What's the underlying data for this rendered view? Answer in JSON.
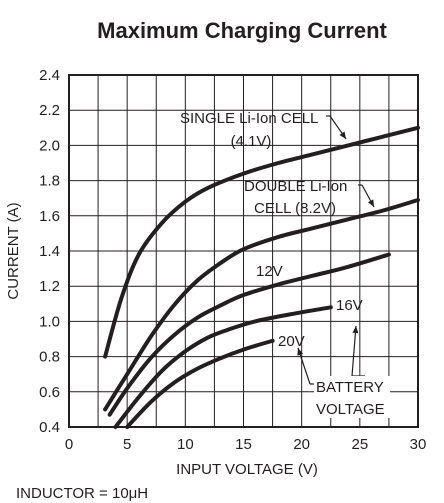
{
  "chart_data": {
    "type": "line",
    "title": "Maximum Charging Current",
    "xlabel": "INPUT VOLTAGE (V)",
    "ylabel": "CURRENT (A)",
    "xlim": [
      0,
      30
    ],
    "ylim": [
      0.4,
      2.4
    ],
    "xticks": [
      0,
      5,
      10,
      15,
      20,
      25,
      30
    ],
    "yticks": [
      "0.4",
      "0.6",
      "0.8",
      "1.0",
      "1.2",
      "1.4",
      "1.6",
      "1.8",
      "2.0",
      "2.2",
      "2.4"
    ],
    "grid": true,
    "footnote": "INDUCTOR = 10μH",
    "series": [
      {
        "name": "SINGLE Li-Ion CELL (4.1V)",
        "x": [
          3.1,
          4.5,
          6,
          8,
          10,
          12,
          15,
          18,
          21,
          24,
          27,
          30
        ],
        "y": [
          0.8,
          1.13,
          1.38,
          1.56,
          1.68,
          1.76,
          1.84,
          1.9,
          1.95,
          2.0,
          2.05,
          2.1
        ]
      },
      {
        "name": "DOUBLE Li-Ion CELL (8.2V)",
        "x": [
          3.1,
          5,
          7,
          9,
          11,
          13,
          15,
          18,
          21,
          24,
          27,
          30
        ],
        "y": [
          0.5,
          0.7,
          0.91,
          1.09,
          1.23,
          1.33,
          1.41,
          1.48,
          1.53,
          1.58,
          1.63,
          1.69
        ]
      },
      {
        "name": "12V",
        "x": [
          3.5,
          5,
          7,
          9,
          11,
          13,
          15,
          18,
          21,
          24,
          27.5
        ],
        "y": [
          0.47,
          0.62,
          0.79,
          0.92,
          1.02,
          1.09,
          1.15,
          1.21,
          1.26,
          1.31,
          1.38
        ]
      },
      {
        "name": "16V",
        "x": [
          4,
          6,
          8,
          10,
          12,
          14,
          16,
          19,
          22.5
        ],
        "y": [
          0.4,
          0.57,
          0.72,
          0.83,
          0.91,
          0.96,
          1.0,
          1.04,
          1.08
        ]
      },
      {
        "name": "20V",
        "x": [
          5,
          7,
          9,
          11,
          13,
          15,
          17.5
        ],
        "y": [
          0.4,
          0.54,
          0.65,
          0.73,
          0.79,
          0.84,
          0.89
        ]
      }
    ],
    "annotations": {
      "single_line1": "SINGLE Li-Ion CELL",
      "single_line2": "(4.1V)",
      "double_line1": "DOUBLE Li-Ion",
      "double_line2": "CELL (8.2V)",
      "v12": "12V",
      "v16": "16V",
      "v20": "20V",
      "battery_line1": "BATTERY",
      "battery_line2": "VOLTAGE"
    }
  }
}
